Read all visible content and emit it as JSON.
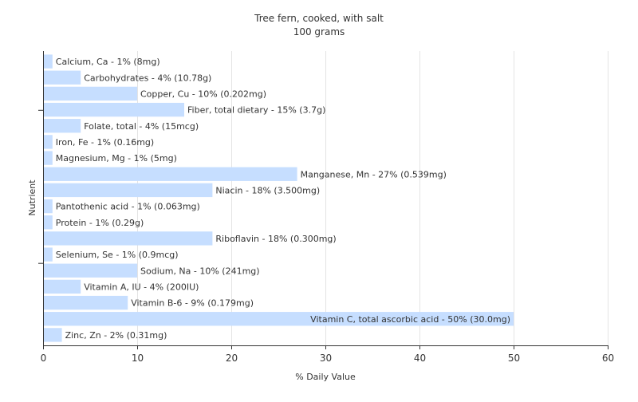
{
  "chart_data": {
    "type": "bar",
    "orientation": "horizontal",
    "title": "Tree fern, cooked, with salt",
    "subtitle": "100 grams",
    "xlabel": "% Daily Value",
    "ylabel": "Nutrient",
    "xlim": [
      0,
      60
    ],
    "xticks": [
      0,
      10,
      20,
      30,
      40,
      50,
      60
    ],
    "grid": true,
    "bar_color": "#c6deff",
    "categories": [
      "Calcium, Ca",
      "Carbohydrates",
      "Copper, Cu",
      "Fiber, total dietary",
      "Folate, total",
      "Iron, Fe",
      "Magnesium, Mg",
      "Manganese, Mn",
      "Niacin",
      "Pantothenic acid",
      "Protein",
      "Riboflavin",
      "Selenium, Se",
      "Sodium, Na",
      "Vitamin A, IU",
      "Vitamin B-6",
      "Vitamin C, total ascorbic acid",
      "Zinc, Zn"
    ],
    "values": [
      1,
      4,
      10,
      15,
      4,
      1,
      1,
      27,
      18,
      1,
      1,
      18,
      1,
      10,
      4,
      9,
      50,
      2
    ],
    "labels": [
      "Calcium, Ca - 1% (8mg)",
      "Carbohydrates - 4% (10.78g)",
      "Copper, Cu - 10% (0.202mg)",
      "Fiber, total dietary - 15% (3.7g)",
      "Folate, total - 4% (15mcg)",
      "Iron, Fe - 1% (0.16mg)",
      "Magnesium, Mg - 1% (5mg)",
      "Manganese, Mn - 27% (0.539mg)",
      "Niacin - 18% (3.500mg)",
      "Pantothenic acid - 1% (0.063mg)",
      "Protein - 1% (0.29g)",
      "Riboflavin - 18% (0.300mg)",
      "Selenium, Se - 1% (0.9mcg)",
      "Sodium, Na - 10% (241mg)",
      "Vitamin A, IU - 4% (200IU)",
      "Vitamin B-6 - 9% (0.179mg)",
      "Vitamin C, total ascorbic acid - 50% (30.0mg)",
      "Zinc, Zn - 2% (0.31mg)"
    ]
  }
}
